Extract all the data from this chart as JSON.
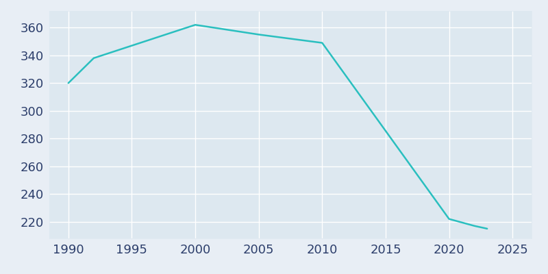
{
  "years": [
    1990,
    1992,
    2000,
    2005,
    2010,
    2020,
    2022,
    2023
  ],
  "population": [
    320,
    338,
    362,
    355,
    349,
    222,
    217,
    215
  ],
  "line_color": "#2abfbf",
  "plot_bg_color": "#dde8f0",
  "fig_bg_color": "#e8eef5",
  "grid_color": "#ffffff",
  "xlim": [
    1988.5,
    2026.5
  ],
  "ylim": [
    208,
    372
  ],
  "xticks": [
    1990,
    1995,
    2000,
    2005,
    2010,
    2015,
    2020,
    2025
  ],
  "yticks": [
    220,
    240,
    260,
    280,
    300,
    320,
    340,
    360
  ],
  "tick_color": "#2c3e6b",
  "tick_fontsize": 13,
  "line_width": 1.8
}
